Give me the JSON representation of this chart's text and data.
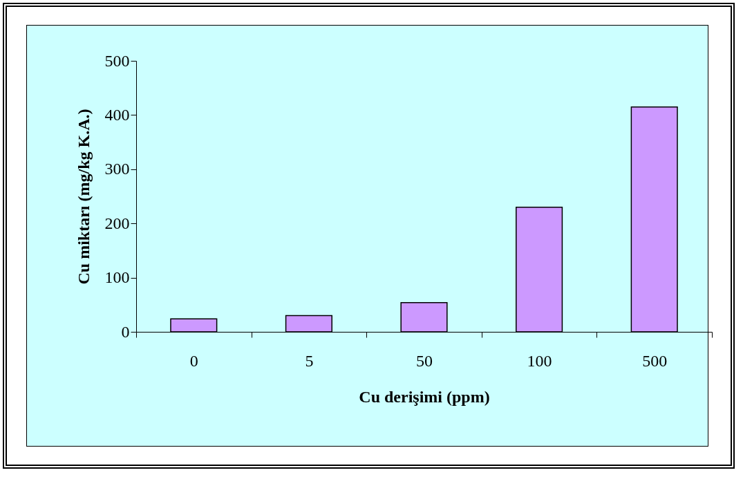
{
  "chart_data": {
    "type": "bar",
    "xlabel": "Cu derişimi (ppm)",
    "ylabel": "Cu miktarı (mg/kg K.A.)",
    "categories": [
      "0",
      "5",
      "50",
      "100",
      "500"
    ],
    "values": [
      24,
      30,
      54,
      230,
      415
    ],
    "color": "#cc99ff",
    "ylim": [
      0,
      500
    ],
    "yticks": [
      0,
      100,
      200,
      300,
      400,
      500
    ],
    "grid": false
  }
}
